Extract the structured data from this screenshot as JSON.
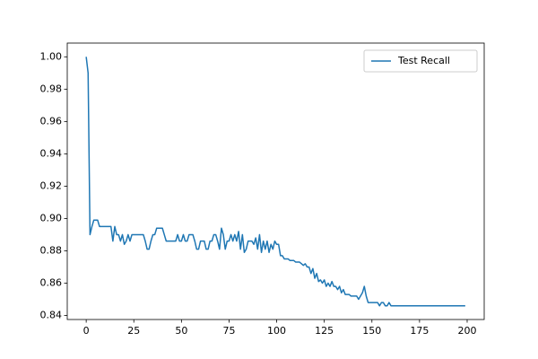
{
  "chart_data": {
    "type": "line",
    "x": [
      0,
      1,
      2,
      3,
      4,
      5,
      6,
      7,
      8,
      9,
      10,
      11,
      12,
      13,
      14,
      15,
      16,
      17,
      18,
      19,
      20,
      21,
      22,
      23,
      24,
      25,
      26,
      27,
      28,
      29,
      30,
      31,
      32,
      33,
      34,
      35,
      36,
      37,
      38,
      39,
      40,
      41,
      42,
      43,
      44,
      45,
      46,
      47,
      48,
      49,
      50,
      51,
      52,
      53,
      54,
      55,
      56,
      57,
      58,
      59,
      60,
      61,
      62,
      63,
      64,
      65,
      66,
      67,
      68,
      69,
      70,
      71,
      72,
      73,
      74,
      75,
      76,
      77,
      78,
      79,
      80,
      81,
      82,
      83,
      84,
      85,
      86,
      87,
      88,
      89,
      90,
      91,
      92,
      93,
      94,
      95,
      96,
      97,
      98,
      99,
      100,
      101,
      102,
      103,
      104,
      105,
      106,
      107,
      108,
      109,
      110,
      111,
      112,
      113,
      114,
      115,
      116,
      117,
      118,
      119,
      120,
      121,
      122,
      123,
      124,
      125,
      126,
      127,
      128,
      129,
      130,
      131,
      132,
      133,
      134,
      135,
      136,
      137,
      138,
      139,
      140,
      141,
      142,
      143,
      144,
      145,
      146,
      147,
      148,
      149,
      150,
      151,
      152,
      153,
      154,
      155,
      156,
      157,
      158,
      159,
      160,
      161,
      162,
      163,
      164,
      165,
      166,
      167,
      168,
      169,
      170,
      171,
      172,
      173,
      174,
      175,
      176,
      177,
      178,
      179,
      180,
      181,
      182,
      183,
      184,
      185,
      186,
      187,
      188,
      189,
      190,
      191,
      192,
      193,
      194,
      195,
      196,
      197,
      198,
      199
    ],
    "series": [
      {
        "name": "Test Recall",
        "color": "#1f77b4",
        "values": [
          1.0,
          0.99,
          0.89,
          0.895,
          0.899,
          0.899,
          0.899,
          0.895,
          0.895,
          0.895,
          0.895,
          0.895,
          0.895,
          0.895,
          0.886,
          0.895,
          0.89,
          0.89,
          0.886,
          0.89,
          0.884,
          0.886,
          0.89,
          0.886,
          0.89,
          0.89,
          0.89,
          0.89,
          0.89,
          0.89,
          0.89,
          0.886,
          0.881,
          0.881,
          0.886,
          0.89,
          0.89,
          0.894,
          0.894,
          0.894,
          0.894,
          0.89,
          0.886,
          0.886,
          0.886,
          0.886,
          0.886,
          0.886,
          0.89,
          0.886,
          0.886,
          0.89,
          0.886,
          0.886,
          0.89,
          0.89,
          0.89,
          0.886,
          0.881,
          0.881,
          0.886,
          0.886,
          0.886,
          0.881,
          0.881,
          0.886,
          0.886,
          0.89,
          0.89,
          0.886,
          0.881,
          0.894,
          0.89,
          0.881,
          0.886,
          0.886,
          0.89,
          0.886,
          0.89,
          0.886,
          0.892,
          0.881,
          0.89,
          0.879,
          0.881,
          0.886,
          0.886,
          0.886,
          0.884,
          0.888,
          0.881,
          0.89,
          0.879,
          0.886,
          0.881,
          0.886,
          0.879,
          0.884,
          0.881,
          0.886,
          0.884,
          0.884,
          0.877,
          0.877,
          0.875,
          0.875,
          0.875,
          0.874,
          0.874,
          0.874,
          0.873,
          0.873,
          0.873,
          0.872,
          0.871,
          0.872,
          0.87,
          0.87,
          0.866,
          0.869,
          0.863,
          0.866,
          0.861,
          0.862,
          0.86,
          0.862,
          0.858,
          0.86,
          0.858,
          0.861,
          0.858,
          0.858,
          0.856,
          0.858,
          0.854,
          0.856,
          0.853,
          0.853,
          0.853,
          0.852,
          0.852,
          0.852,
          0.852,
          0.85,
          0.852,
          0.854,
          0.858,
          0.852,
          0.848,
          0.848,
          0.848,
          0.848,
          0.848,
          0.848,
          0.846,
          0.848,
          0.848,
          0.846,
          0.846,
          0.848,
          0.846,
          0.846,
          0.846,
          0.846,
          0.846,
          0.846,
          0.846,
          0.846,
          0.846,
          0.846,
          0.846,
          0.846,
          0.846,
          0.846,
          0.846,
          0.846,
          0.846,
          0.846,
          0.846,
          0.846,
          0.846,
          0.846,
          0.846,
          0.846,
          0.846,
          0.846,
          0.846,
          0.846,
          0.846,
          0.846,
          0.846,
          0.846,
          0.846,
          0.846,
          0.846,
          0.846,
          0.846,
          0.846,
          0.846,
          0.846
        ]
      }
    ],
    "xlim": [
      -9.95,
      208.95
    ],
    "xticks": [
      0,
      25,
      50,
      75,
      100,
      125,
      150,
      175,
      200
    ],
    "ylim": [
      0.8375,
      1.0085
    ],
    "yticks": [
      {
        "value": 0.84,
        "label": "0.84"
      },
      {
        "value": 0.86,
        "label": "0.86"
      },
      {
        "value": 0.88,
        "label": "0.88"
      },
      {
        "value": 0.9,
        "label": "0.90"
      },
      {
        "value": 0.92,
        "label": "0.92"
      },
      {
        "value": 0.94,
        "label": "0.94"
      },
      {
        "value": 0.96,
        "label": "0.96"
      },
      {
        "value": 0.98,
        "label": "0.98"
      },
      {
        "value": 1.0,
        "label": "1.00"
      }
    ],
    "legend": "upper right",
    "grid": false
  }
}
